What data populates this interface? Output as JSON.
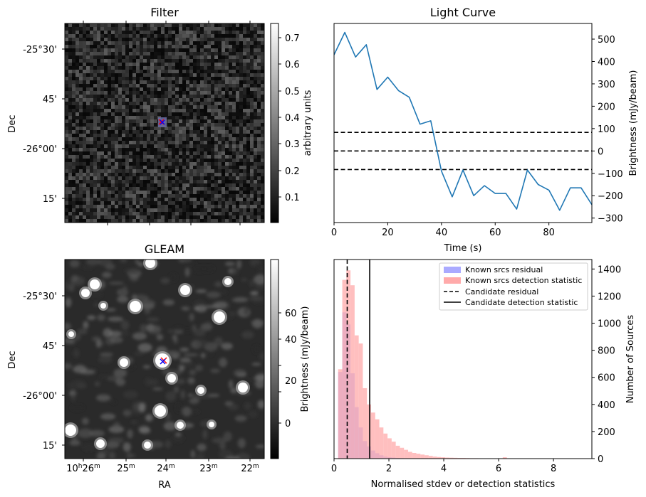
{
  "colors": {
    "series": "#1f77b4",
    "known_residual": "#aaaaff",
    "known_detection": "#ffaaaa",
    "marker_red": "#ff0000",
    "marker_blue": "#0000ff",
    "dashed": "#000000"
  },
  "panels": {
    "filter": {
      "title": "Filter",
      "ylabel": "Dec",
      "dec_ticks": [
        "-25°30'",
        "45'",
        "-26°00'",
        "15'"
      ],
      "colorbar_label": "arbitrary units",
      "colorbar_ticks": [
        "0.7",
        "0.6",
        "0.5",
        "0.4",
        "0.3",
        "0.2",
        "0.1"
      ],
      "colorbar_range": [
        0.02,
        0.75
      ],
      "colormap": "gray"
    },
    "gleam": {
      "title": "GLEAM",
      "ylabel": "Dec",
      "xlabel": "RA",
      "dec_ticks": [
        "-25°30'",
        "45'",
        "-26°00'",
        "15'"
      ],
      "ra_ticks": [
        {
          "h": "10",
          "hs": "h",
          "m": "26",
          "ms": "m"
        },
        {
          "h": "",
          "hs": "",
          "m": "25",
          "ms": "m"
        },
        {
          "h": "",
          "hs": "",
          "m": "24",
          "ms": "m"
        },
        {
          "h": "",
          "hs": "",
          "m": "23",
          "ms": "m"
        },
        {
          "h": "",
          "hs": "",
          "m": "22",
          "ms": "m"
        }
      ],
      "colorbar_label": "Brightness (mJy/beam)",
      "colorbar_ticks": [
        "60",
        "40",
        "20",
        "0"
      ],
      "colorbar_range": [
        -15,
        76
      ],
      "colormap": "gray"
    },
    "light_curve": {
      "title": "Light Curve",
      "xlabel": "Time (s)",
      "ylabel": "Brightness (mJy/beam)"
    },
    "histogram": {
      "xlabel": "Normalised stdev or detection statistics",
      "ylabel": "Number of Sources",
      "legend": [
        {
          "label": "Known srcs residual",
          "kind": "patch",
          "color": "#aaaaff"
        },
        {
          "label": "Known srcs detection statistic",
          "kind": "patch",
          "color": "#ffaaaa"
        },
        {
          "label": "Candidate residual",
          "kind": "dashed",
          "color": "#000000"
        },
        {
          "label": "Candidate detection statistic",
          "kind": "solid",
          "color": "#000000"
        }
      ],
      "legend_position": "top-right"
    }
  },
  "chart_data": [
    {
      "type": "line",
      "panel": "light_curve",
      "x": [
        0,
        4,
        8,
        12,
        16,
        20,
        24,
        28,
        32,
        36,
        40,
        44,
        48,
        52,
        56,
        60,
        64,
        68,
        72,
        76,
        80,
        84,
        88,
        92,
        96
      ],
      "y": [
        430,
        530,
        420,
        475,
        275,
        330,
        270,
        240,
        120,
        135,
        -90,
        -205,
        -85,
        -200,
        -155,
        -190,
        -190,
        -260,
        -85,
        -150,
        -175,
        -265,
        -165,
        -165,
        -240
      ],
      "xlim": [
        0,
        96
      ],
      "ylim": [
        -320,
        570
      ],
      "xticks": [
        0,
        20,
        40,
        60,
        80
      ],
      "yticks": [
        -300,
        -200,
        -100,
        0,
        100,
        200,
        300,
        400,
        500
      ],
      "hlines": [
        {
          "y": 83,
          "style": "dashed"
        },
        {
          "y": 0,
          "style": "dashed"
        },
        {
          "y": -83,
          "style": "dashed"
        }
      ],
      "grid": false
    },
    {
      "type": "histogram",
      "panel": "histogram",
      "bin_width": 0.15,
      "bin_start": 0,
      "xlim": [
        0,
        9.4
      ],
      "ylim": [
        0,
        1470
      ],
      "xticks": [
        0,
        2,
        4,
        6,
        8
      ],
      "yticks": [
        0,
        200,
        400,
        600,
        800,
        1000,
        1200,
        1400
      ],
      "series": [
        {
          "name": "Known srcs residual",
          "color": "#aaaaff",
          "counts": [
            0,
            640,
            1080,
            990,
            630,
            380,
            230,
            130,
            90,
            60,
            40,
            25,
            15,
            10,
            8,
            5,
            4,
            3,
            2
          ]
        },
        {
          "name": "Known srcs detection statistic",
          "color": "#ffaaaa",
          "counts": [
            0,
            660,
            1320,
            1390,
            1280,
            910,
            850,
            520,
            400,
            340,
            290,
            230,
            185,
            150,
            125,
            95,
            80,
            65,
            50,
            42,
            36,
            30,
            25,
            20,
            15,
            12,
            10,
            8,
            7,
            6,
            5,
            5,
            4,
            3,
            3,
            2,
            2,
            2,
            2,
            1,
            1,
            10,
            1,
            1,
            1,
            1,
            1,
            1,
            1,
            1,
            1,
            1,
            1,
            1,
            1,
            1,
            1,
            1,
            1,
            1,
            1,
            1
          ]
        }
      ],
      "vlines": [
        {
          "x": 0.48,
          "style": "dashed",
          "name": "Candidate residual"
        },
        {
          "x": 1.3,
          "style": "solid",
          "name": "Candidate detection statistic"
        }
      ]
    }
  ]
}
